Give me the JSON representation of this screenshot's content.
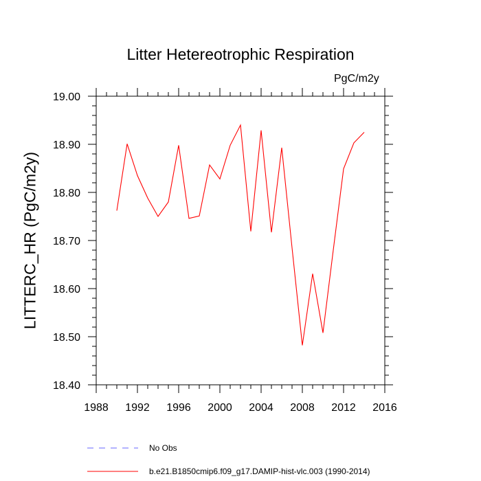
{
  "chart_data": {
    "type": "line",
    "title": "Litter Hetereotrophic Respiration",
    "units_label": "PgC/m2y",
    "xlabel": "",
    "ylabel": "LITTERC_HR  (PgC/m2y)",
    "xlim": [
      1988,
      2016
    ],
    "ylim": [
      18.4,
      19.0
    ],
    "x_ticks": [
      1988,
      1992,
      1996,
      2000,
      2004,
      2008,
      2012,
      2016
    ],
    "x_tick_labels": [
      "1988",
      "1992",
      "1996",
      "2000",
      "2004",
      "2008",
      "2012",
      "2016"
    ],
    "y_ticks": [
      18.4,
      18.5,
      18.6,
      18.7,
      18.8,
      18.9,
      19.0
    ],
    "y_tick_labels": [
      "18.40",
      "18.50",
      "18.60",
      "18.70",
      "18.80",
      "18.90",
      "19.00"
    ],
    "series": [
      {
        "name": "b.e21.B1850cmip6.f09_g17.DAMIP-hist-vlc.003 (1990-2014)",
        "color": "#ff0000",
        "style": "solid",
        "x": [
          1990,
          1991,
          1992,
          1993,
          1994,
          1995,
          1996,
          1997,
          1998,
          1999,
          2000,
          2001,
          2002,
          2003,
          2004,
          2005,
          2006,
          2007,
          2008,
          2009,
          2010,
          2011,
          2012,
          2013,
          2014
        ],
        "values": [
          18.762,
          18.901,
          18.835,
          18.788,
          18.75,
          18.78,
          18.898,
          18.746,
          18.751,
          18.857,
          18.828,
          18.898,
          18.94,
          18.719,
          18.929,
          18.717,
          18.893,
          18.685,
          18.482,
          18.631,
          18.508,
          18.68,
          18.849,
          18.903,
          18.925
        ]
      }
    ],
    "legend": [
      {
        "label": "No Obs",
        "color": "#6666ff",
        "style": "dashed"
      },
      {
        "label": "b.e21.B1850cmip6.f09_g17.DAMIP-hist-vlc.003 (1990-2014)",
        "color": "#ff0000",
        "style": "solid"
      }
    ]
  }
}
